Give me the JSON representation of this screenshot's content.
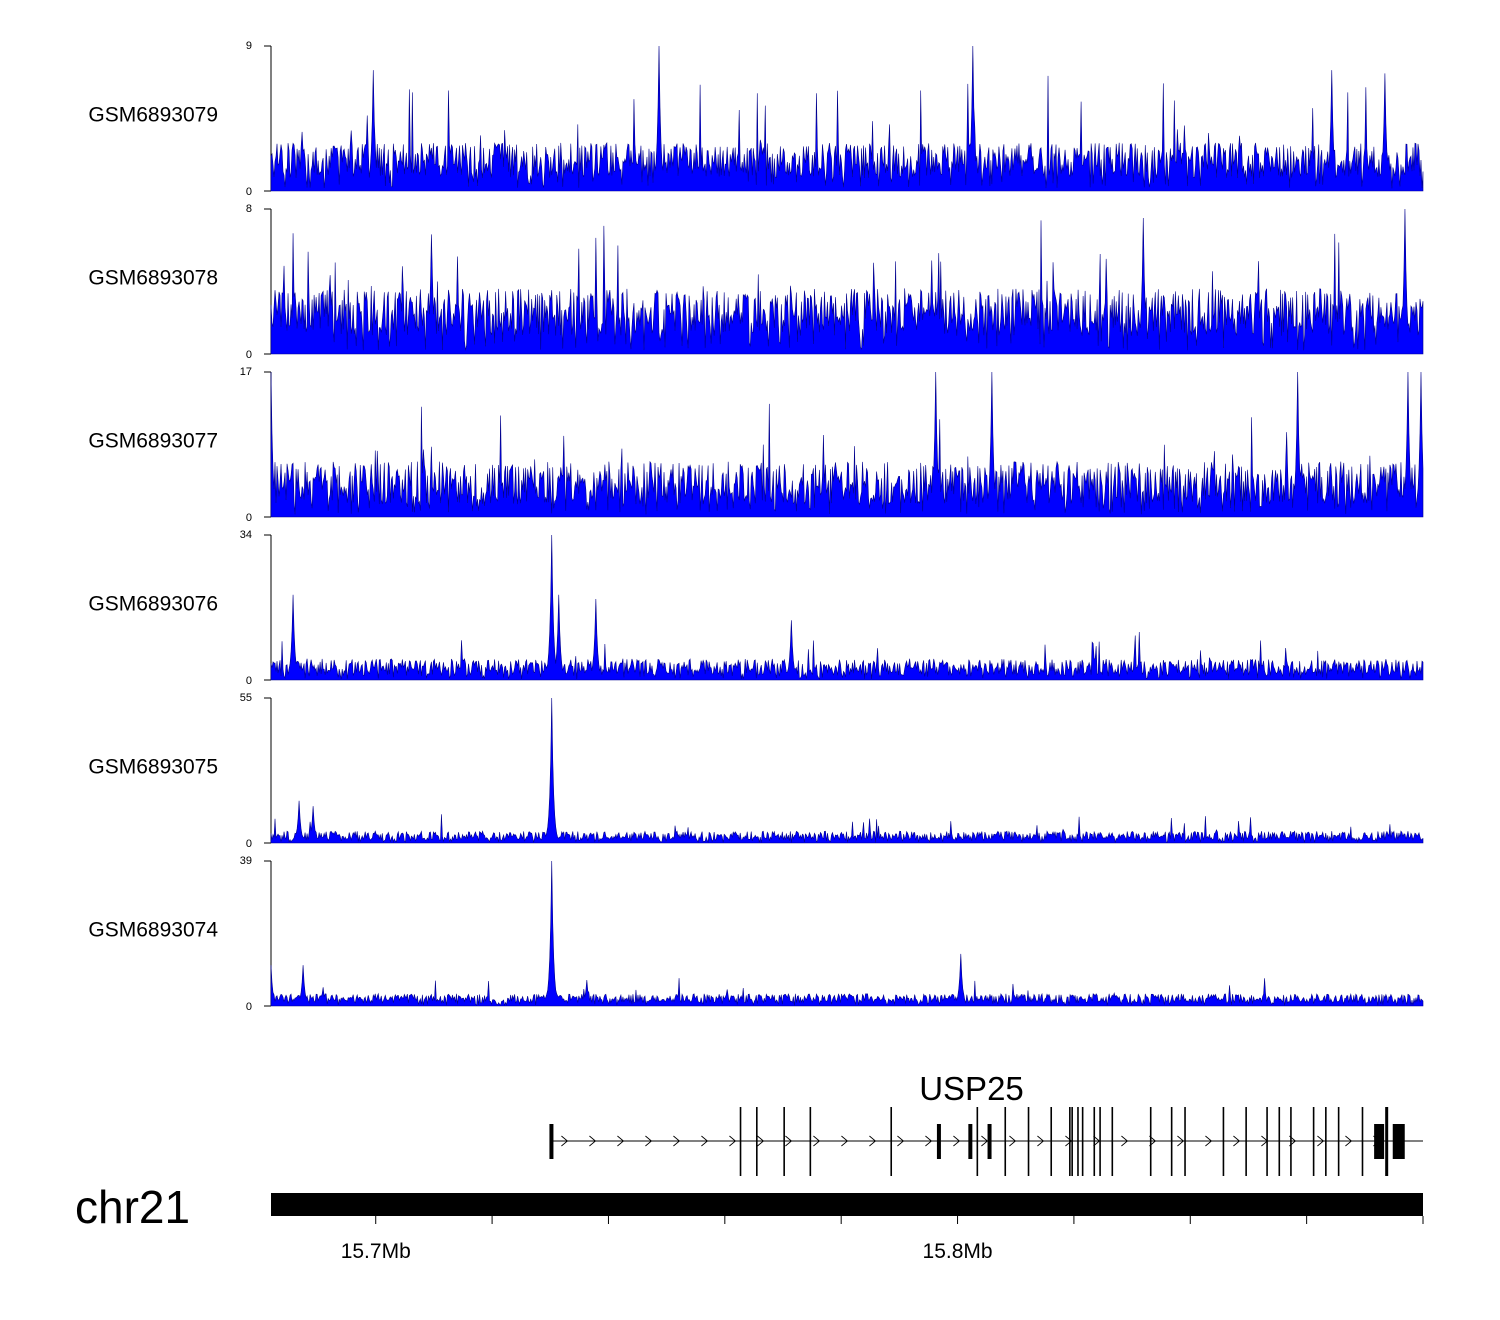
{
  "chart_data": {
    "type": "area",
    "title": "",
    "chromosome": "chr21",
    "region_mb": [
      15.682,
      15.88
    ],
    "color": "#0000ff",
    "outline_color": "#00008b",
    "tracks": [
      {
        "name": "GSM6893079",
        "ymax": 9,
        "ymin": 0,
        "ymax_label": "9",
        "ymin_label": "0",
        "baseline": 0.8,
        "noise": 2.2,
        "spike_rate": 0.04,
        "spike_height": 5,
        "peaks": [
          {
            "pos": 15.7487,
            "value": 9
          },
          {
            "pos": 15.8026,
            "value": 9
          },
          {
            "pos": 15.6995,
            "value": 7.5
          },
          {
            "pos": 15.8643,
            "value": 7.5
          },
          {
            "pos": 15.8734,
            "value": 7.3
          }
        ]
      },
      {
        "name": "GSM6893078",
        "ymax": 8,
        "ymin": 0,
        "ymax_label": "8",
        "ymin_label": "0",
        "baseline": 1.0,
        "noise": 2.6,
        "spike_rate": 0.05,
        "spike_height": 4,
        "peaks": [
          {
            "pos": 15.8319,
            "value": 7.5
          },
          {
            "pos": 15.8769,
            "value": 8
          },
          {
            "pos": 15.7095,
            "value": 6.6
          }
        ]
      },
      {
        "name": "GSM6893077",
        "ymax": 17,
        "ymin": 0,
        "ymax_label": "17",
        "ymin_label": "0",
        "baseline": 1.5,
        "noise": 5.0,
        "spike_rate": 0.03,
        "spike_height": 8,
        "peaks": [
          {
            "pos": 15.682,
            "value": 17
          },
          {
            "pos": 15.7962,
            "value": 17
          },
          {
            "pos": 15.8059,
            "value": 17
          },
          {
            "pos": 15.8585,
            "value": 17
          },
          {
            "pos": 15.8775,
            "value": 17
          },
          {
            "pos": 15.8796,
            "value": 17
          }
        ]
      },
      {
        "name": "GSM6893076",
        "ymax": 34,
        "ymin": 0,
        "ymax_label": "34",
        "ymin_label": "0",
        "baseline": 1.0,
        "noise": 4.0,
        "spike_rate": 0.025,
        "spike_height": 8,
        "peaks": [
          {
            "pos": 15.7302,
            "value": 34
          },
          {
            "pos": 15.7314,
            "value": 20
          },
          {
            "pos": 15.7378,
            "value": 19
          },
          {
            "pos": 15.6858,
            "value": 20
          },
          {
            "pos": 15.7715,
            "value": 14
          }
        ]
      },
      {
        "name": "GSM6893075",
        "ymax": 55,
        "ymin": 0,
        "ymax_label": "55",
        "ymin_label": "0",
        "baseline": 1.0,
        "noise": 3.5,
        "spike_rate": 0.02,
        "spike_height": 7,
        "peaks": [
          {
            "pos": 15.7302,
            "value": 55
          },
          {
            "pos": 15.6868,
            "value": 16
          },
          {
            "pos": 15.6892,
            "value": 14
          }
        ]
      },
      {
        "name": "GSM6893074",
        "ymax": 39,
        "ymin": 0,
        "ymax_label": "39",
        "ymin_label": "0",
        "baseline": 0.8,
        "noise": 2.5,
        "spike_rate": 0.02,
        "spike_height": 5,
        "peaks": [
          {
            "pos": 15.7302,
            "value": 39
          },
          {
            "pos": 15.6875,
            "value": 11
          },
          {
            "pos": 15.7363,
            "value": 7
          },
          {
            "pos": 15.682,
            "value": 11
          },
          {
            "pos": 15.8005,
            "value": 14
          }
        ]
      }
    ],
    "gene": {
      "name": "USP25",
      "start_mb": 15.7302,
      "end_mb": 15.88,
      "strand": "+",
      "exons_mb": [
        15.7302,
        15.7627,
        15.7655,
        15.7702,
        15.7747,
        15.7886,
        15.7968,
        15.8022,
        15.8034,
        15.8055,
        15.8082,
        15.8122,
        15.8161,
        15.8193,
        15.8197,
        15.8207,
        15.8215,
        15.8235,
        15.8245,
        15.8266,
        15.8332,
        15.8368,
        15.8391,
        15.8457,
        15.8496,
        15.8532,
        15.8553,
        15.8573,
        15.8612,
        15.8633,
        15.8655,
        15.8696
      ]
    },
    "x_axis": {
      "tick_labels": [
        {
          "pos": 15.7,
          "label": "15.7Mb"
        },
        {
          "pos": 15.8,
          "label": "15.8Mb"
        }
      ],
      "minor_ticks_mb": [
        15.7,
        15.72,
        15.74,
        15.76,
        15.78,
        15.8,
        15.82,
        15.84,
        15.86,
        15.88
      ]
    }
  }
}
